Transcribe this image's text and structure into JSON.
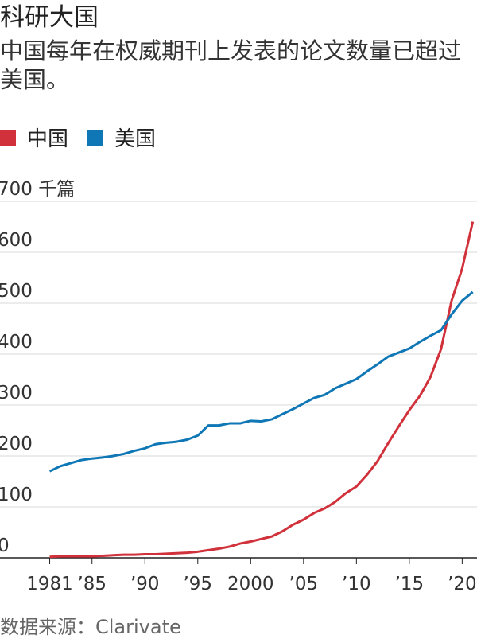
{
  "chart_data": {
    "type": "line",
    "title": "科研大国",
    "subtitle": "中国每年在权威期刊上发表的论文数量已超过美国。",
    "source": "数据来源：Clarivate",
    "x": [
      1981,
      1982,
      1983,
      1984,
      1985,
      1986,
      1987,
      1988,
      1989,
      1990,
      1991,
      1992,
      1993,
      1994,
      1995,
      1996,
      1997,
      1998,
      1999,
      2000,
      2001,
      2002,
      2003,
      2004,
      2005,
      2006,
      2007,
      2008,
      2009,
      2010,
      2011,
      2012,
      2013,
      2014,
      2015,
      2016,
      2017,
      2018,
      2019,
      2020,
      2021
    ],
    "series": [
      {
        "name": "中国",
        "color": "#d0313a",
        "values": [
          2,
          3,
          3,
          3,
          3,
          4,
          5,
          6,
          6,
          7,
          7,
          8,
          9,
          10,
          12,
          15,
          18,
          22,
          28,
          32,
          37,
          42,
          52,
          65,
          75,
          88,
          97,
          110,
          127,
          140,
          163,
          190,
          225,
          258,
          290,
          318,
          355,
          410,
          505,
          568,
          660
        ]
      },
      {
        "name": "美国",
        "color": "#0f77b5",
        "values": [
          170,
          180,
          186,
          192,
          195,
          197,
          200,
          204,
          210,
          215,
          223,
          226,
          228,
          232,
          240,
          260,
          260,
          264,
          264,
          269,
          268,
          272,
          282,
          292,
          303,
          314,
          320,
          333,
          342,
          351,
          366,
          380,
          395,
          403,
          411,
          424,
          436,
          447,
          478,
          505,
          522
        ]
      }
    ],
    "xlim": [
      1976.3,
      2021.4
    ],
    "xticks": [
      1981,
      {
        "value": 1985,
        "label": "’85"
      },
      {
        "value": 1990,
        "label": "’90"
      },
      {
        "value": 1995,
        "label": "’95"
      },
      2000,
      {
        "value": 2005,
        "label": "’05"
      },
      {
        "value": 2010,
        "label": "’10"
      },
      {
        "value": 2015,
        "label": "’15"
      },
      {
        "value": 2020,
        "label": "’20"
      }
    ],
    "ylim": [
      0,
      700
    ],
    "yticks": [
      0,
      100,
      200,
      300,
      400,
      500,
      600,
      {
        "value": 700,
        "label": "700 千篇"
      }
    ],
    "grid": true
  }
}
